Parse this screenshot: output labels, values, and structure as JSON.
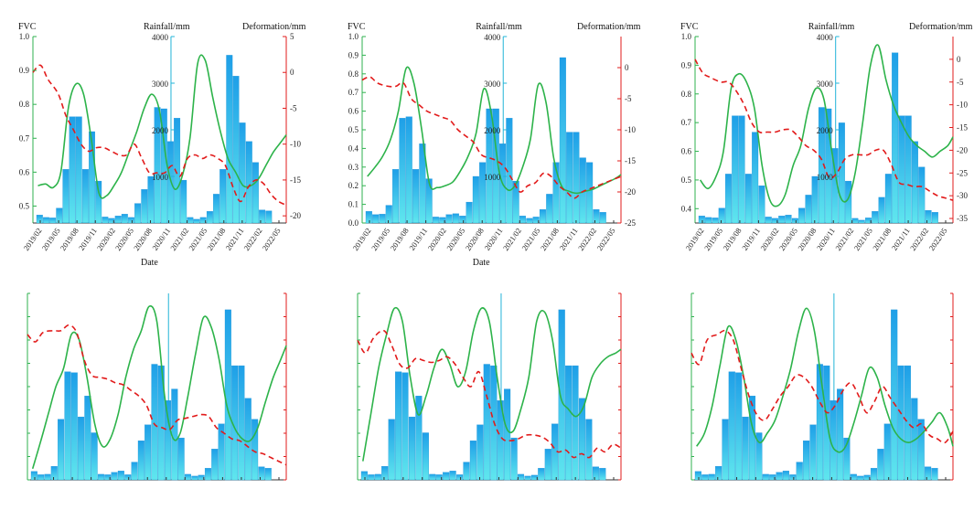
{
  "figure": {
    "layout": "2 rows x 3 columns of FVC / rainfall / deformation time series panels"
  },
  "colors": {
    "fvc_line": "#2db34a",
    "deformation_line": "#e21b1b",
    "rainfall_bar_top": "#1e9fe8",
    "rainfall_bar_bottom": "#5fe6ee",
    "rainfall_axis": "#22b4d8"
  },
  "chart_data": [
    {
      "type": "bar+line",
      "panel": "top-left",
      "labels": {
        "fvc": "FVC",
        "rainfall": "Rainfall/mm",
        "deformation": "Deformation/mm",
        "xlabel": "Date"
      },
      "fvc_ticks": [
        "0.5",
        "0.6",
        "0.7",
        "0.8",
        "0.9",
        "1.0"
      ],
      "rain_ticks": [
        "1000",
        "2000",
        "3000",
        "4000"
      ],
      "def_ticks": [
        "5",
        "0",
        "-5",
        "-10",
        "-15",
        "-20"
      ],
      "date_ticks": [
        "2019/02",
        "2019/05",
        "2019/08",
        "2019/11",
        "2020/02",
        "2020/05",
        "2020/08",
        "2020/11",
        "2021/02",
        "2021/05",
        "2021/08",
        "2021/11",
        "2022/02",
        "2022/05"
      ],
      "fvc_range": [
        0.45,
        1.0
      ],
      "rain_range": [
        0,
        4000
      ],
      "def_range": [
        -21,
        5
      ],
      "rainfall": [
        170,
        120,
        110,
        320,
        1150,
        2280,
        2280,
        1150,
        1960,
        900,
        130,
        100,
        150,
        190,
        120,
        420,
        720,
        1000,
        2480,
        2450,
        1750,
        2250,
        920,
        120,
        80,
        120,
        250,
        620,
        1150,
        3600,
        3150,
        2150,
        1750,
        1300,
        280,
        260
      ],
      "fvc_t": [
        0.02,
        0.05,
        0.08,
        0.11,
        0.14,
        0.17,
        0.2,
        0.23,
        0.26,
        0.29,
        0.32,
        0.35,
        0.38,
        0.41,
        0.44,
        0.47,
        0.5,
        0.53,
        0.56,
        0.59,
        0.62,
        0.65,
        0.68,
        0.71,
        0.74,
        0.77,
        0.8,
        0.83,
        0.86,
        0.89,
        0.92,
        0.95,
        0.98,
        1.0
      ],
      "fvc_values": [
        0.56,
        0.565,
        0.555,
        0.6,
        0.79,
        0.86,
        0.83,
        0.7,
        0.54,
        0.53,
        0.56,
        0.6,
        0.66,
        0.72,
        0.79,
        0.83,
        0.78,
        0.62,
        0.55,
        0.59,
        0.7,
        0.92,
        0.93,
        0.82,
        0.72,
        0.64,
        0.6,
        0.56,
        0.56,
        0.58,
        0.62,
        0.66,
        0.69,
        0.71
      ],
      "def_t": [
        0.0,
        0.03,
        0.06,
        0.1,
        0.13,
        0.16,
        0.19,
        0.22,
        0.25,
        0.28,
        0.31,
        0.34,
        0.37,
        0.4,
        0.43,
        0.46,
        0.49,
        0.52,
        0.55,
        0.58,
        0.61,
        0.64,
        0.67,
        0.7,
        0.73,
        0.76,
        0.79,
        0.82,
        0.85,
        0.88,
        0.91,
        0.94,
        0.97,
        1.0
      ],
      "def_values": [
        0,
        1,
        -1,
        -3,
        -6,
        -8,
        -10,
        -11,
        -10.5,
        -10.5,
        -11,
        -11.5,
        -11.5,
        -10,
        -12,
        -14,
        -14,
        -14,
        -13,
        -14.5,
        -12,
        -11.5,
        -12,
        -11.5,
        -12,
        -13,
        -16,
        -18,
        -16,
        -15,
        -15.5,
        -17,
        -18,
        -18.5
      ],
      "show_axis_text": true,
      "show_date": true
    },
    {
      "type": "bar+line",
      "panel": "top-middle",
      "labels": {
        "fvc": "FVC",
        "rainfall": "Rainfall/mm",
        "deformation": "Deformation/mm",
        "xlabel": "Date"
      },
      "fvc_ticks": [
        "0.0",
        "0.1",
        "0.2",
        "0.3",
        "0.4",
        "0.5",
        "0.6",
        "0.7",
        "0.8",
        "0.9",
        "1.0"
      ],
      "rain_ticks": [
        "1000",
        "2000",
        "3000",
        "4000"
      ],
      "def_ticks": [
        "0",
        "-5",
        "-10",
        "-15",
        "-20",
        "-25"
      ],
      "date_ticks": [
        "2019/02",
        "2019/05",
        "2019/08",
        "2019/11",
        "2020/02",
        "2020/05",
        "2020/08",
        "2020/11",
        "2021/02",
        "2021/05",
        "2021/08",
        "2021/11",
        "2022/02",
        "2022/05"
      ],
      "fvc_range": [
        0.0,
        1.0
      ],
      "rain_range": [
        0,
        4000
      ],
      "def_range": [
        -25,
        5
      ],
      "rainfall": [
        250,
        180,
        190,
        380,
        1150,
        2250,
        2280,
        1150,
        1700,
        950,
        130,
        120,
        180,
        200,
        150,
        450,
        1000,
        1300,
        2450,
        2450,
        1700,
        2250,
        900,
        150,
        100,
        130,
        290,
        620,
        1300,
        3550,
        1950,
        1950,
        1400,
        1300,
        290,
        230
      ],
      "fvc_t": [
        0.02,
        0.05,
        0.08,
        0.11,
        0.14,
        0.17,
        0.2,
        0.23,
        0.26,
        0.29,
        0.32,
        0.35,
        0.38,
        0.41,
        0.44,
        0.47,
        0.5,
        0.53,
        0.56,
        0.59,
        0.62,
        0.65,
        0.68,
        0.71,
        0.74,
        0.77,
        0.8,
        0.83,
        0.86,
        0.89,
        0.92,
        0.95,
        0.98,
        1.0
      ],
      "fvc_values": [
        0.25,
        0.3,
        0.36,
        0.45,
        0.6,
        0.83,
        0.75,
        0.5,
        0.21,
        0.19,
        0.2,
        0.22,
        0.28,
        0.36,
        0.48,
        0.72,
        0.58,
        0.27,
        0.18,
        0.2,
        0.3,
        0.45,
        0.74,
        0.65,
        0.35,
        0.2,
        0.17,
        0.16,
        0.17,
        0.18,
        0.2,
        0.22,
        0.24,
        0.26
      ],
      "def_t": [
        0.0,
        0.03,
        0.06,
        0.1,
        0.13,
        0.16,
        0.19,
        0.22,
        0.25,
        0.28,
        0.31,
        0.34,
        0.37,
        0.4,
        0.43,
        0.46,
        0.49,
        0.52,
        0.55,
        0.58,
        0.61,
        0.64,
        0.67,
        0.7,
        0.73,
        0.76,
        0.79,
        0.82,
        0.85,
        0.88,
        0.91,
        0.94,
        0.97,
        1.0
      ],
      "def_values": [
        -2,
        -1.5,
        -2.5,
        -3,
        -3,
        -2.5,
        -5,
        -6,
        -7,
        -7.5,
        -8,
        -8.5,
        -10,
        -11,
        -12,
        -14,
        -14.5,
        -15,
        -16,
        -18,
        -20,
        -19,
        -18.5,
        -17,
        -17.5,
        -19,
        -20,
        -21,
        -20,
        -19.5,
        -19,
        -18.5,
        -18,
        -17.5
      ],
      "show_axis_text": true,
      "show_date": true
    },
    {
      "type": "bar+line",
      "panel": "top-right",
      "labels": {
        "fvc": "FVC",
        "rainfall": "Rainfall/mm",
        "deformation": "Deformation/mm",
        "xlabel": ""
      },
      "fvc_ticks": [
        "0.4",
        "0.5",
        "0.6",
        "0.7",
        "0.8",
        "0.9",
        "1.0"
      ],
      "rain_ticks": [
        "1000",
        "2000",
        "3000",
        "4000"
      ],
      "def_ticks": [
        "0",
        "-5",
        "-10",
        "-15",
        "-20",
        "-25",
        "-30",
        "-35"
      ],
      "date_ticks": [
        "2019/02",
        "2019/05",
        "2019/08",
        "2019/11",
        "2020/02",
        "2020/05",
        "2020/08",
        "2020/11",
        "2021/02",
        "2021/05",
        "2021/08",
        "2021/11",
        "2022/02",
        "2022/05"
      ],
      "fvc_range": [
        0.35,
        1.0
      ],
      "rain_range": [
        0,
        4000
      ],
      "def_range": [
        -36,
        5
      ],
      "rainfall": [
        150,
        120,
        110,
        320,
        1050,
        2300,
        2300,
        1050,
        1950,
        800,
        130,
        100,
        150,
        170,
        100,
        320,
        600,
        1000,
        2480,
        2450,
        1600,
        2150,
        900,
        100,
        60,
        110,
        250,
        550,
        1050,
        3650,
        2300,
        2300,
        1750,
        1200,
        270,
        230
      ],
      "fvc_t": [
        0.02,
        0.05,
        0.08,
        0.11,
        0.14,
        0.17,
        0.2,
        0.23,
        0.26,
        0.29,
        0.32,
        0.35,
        0.38,
        0.41,
        0.44,
        0.47,
        0.5,
        0.53,
        0.56,
        0.59,
        0.62,
        0.65,
        0.68,
        0.71,
        0.74,
        0.77,
        0.8,
        0.83,
        0.86,
        0.89,
        0.92,
        0.95,
        0.98,
        1.0
      ],
      "fvc_values": [
        0.5,
        0.47,
        0.51,
        0.6,
        0.82,
        0.87,
        0.84,
        0.75,
        0.55,
        0.43,
        0.41,
        0.45,
        0.55,
        0.62,
        0.75,
        0.82,
        0.78,
        0.6,
        0.45,
        0.43,
        0.52,
        0.7,
        0.9,
        0.97,
        0.85,
        0.76,
        0.7,
        0.65,
        0.62,
        0.6,
        0.58,
        0.6,
        0.62,
        0.65
      ],
      "def_t": [
        0.0,
        0.03,
        0.06,
        0.1,
        0.13,
        0.16,
        0.19,
        0.22,
        0.25,
        0.28,
        0.31,
        0.34,
        0.37,
        0.4,
        0.43,
        0.46,
        0.49,
        0.52,
        0.55,
        0.58,
        0.61,
        0.64,
        0.67,
        0.7,
        0.73,
        0.76,
        0.79,
        0.82,
        0.85,
        0.88,
        0.91,
        0.94,
        0.97,
        1.0
      ],
      "def_values": [
        0,
        -3,
        -4,
        -5,
        -5,
        -7,
        -10,
        -14,
        -16,
        -16,
        -16,
        -15.5,
        -15.5,
        -17,
        -19,
        -20,
        -22,
        -26,
        -25,
        -22,
        -21,
        -21,
        -21,
        -20,
        -20,
        -23,
        -27,
        -27.5,
        -28,
        -28,
        -29,
        -30,
        -30.5,
        -31
      ],
      "show_axis_text": true,
      "show_date": true
    },
    {
      "type": "bar+line",
      "panel": "bottom-left",
      "rainfall": [
        180,
        110,
        120,
        290,
        1300,
        2320,
        2300,
        1350,
        1800,
        1010,
        120,
        110,
        160,
        190,
        110,
        380,
        840,
        1180,
        2480,
        2450,
        1700,
        1950,
        900,
        120,
        80,
        100,
        250,
        660,
        1200,
        3650,
        2450,
        2450,
        1750,
        1300,
        280,
        250
      ],
      "fvc_t": [
        0.02,
        0.05,
        0.08,
        0.11,
        0.14,
        0.17,
        0.2,
        0.23,
        0.26,
        0.29,
        0.32,
        0.35,
        0.38,
        0.41,
        0.44,
        0.47,
        0.5,
        0.53,
        0.56,
        0.59,
        0.62,
        0.65,
        0.68,
        0.71,
        0.74,
        0.77,
        0.8,
        0.83,
        0.86,
        0.89,
        0.92,
        0.95,
        0.98,
        1.0
      ],
      "fvc_values": [
        0.06,
        0.2,
        0.35,
        0.5,
        0.6,
        0.78,
        0.75,
        0.55,
        0.3,
        0.18,
        0.22,
        0.35,
        0.55,
        0.7,
        0.8,
        0.93,
        0.85,
        0.45,
        0.23,
        0.25,
        0.45,
        0.68,
        0.87,
        0.82,
        0.65,
        0.4,
        0.28,
        0.22,
        0.21,
        0.28,
        0.42,
        0.55,
        0.65,
        0.72
      ],
      "def_t": [
        0.0,
        0.03,
        0.06,
        0.1,
        0.13,
        0.16,
        0.19,
        0.22,
        0.25,
        0.28,
        0.31,
        0.34,
        0.37,
        0.4,
        0.43,
        0.46,
        0.49,
        0.52,
        0.55,
        0.58,
        0.61,
        0.64,
        0.67,
        0.7,
        0.73,
        0.76,
        0.79,
        0.82,
        0.85,
        0.88,
        0.91,
        0.94,
        0.97,
        1.0
      ],
      "def_values": [
        0.78,
        0.74,
        0.79,
        0.8,
        0.8,
        0.83,
        0.79,
        0.64,
        0.56,
        0.55,
        0.54,
        0.52,
        0.51,
        0.48,
        0.45,
        0.4,
        0.3,
        0.28,
        0.27,
        0.32,
        0.33,
        0.34,
        0.35,
        0.34,
        0.28,
        0.25,
        0.22,
        0.21,
        0.18,
        0.15,
        0.14,
        0.12,
        0.1,
        0.08
      ],
      "show_axis_text": false,
      "show_date": false
    },
    {
      "type": "bar+line",
      "panel": "bottom-middle",
      "rainfall": [
        180,
        110,
        120,
        290,
        1300,
        2320,
        2300,
        1350,
        1800,
        1010,
        120,
        110,
        160,
        190,
        110,
        380,
        840,
        1180,
        2480,
        2450,
        1700,
        1950,
        900,
        120,
        80,
        100,
        250,
        660,
        1200,
        3650,
        2450,
        2450,
        1750,
        1300,
        280,
        250
      ],
      "fvc_t": [
        0.02,
        0.05,
        0.08,
        0.11,
        0.14,
        0.17,
        0.2,
        0.23,
        0.26,
        0.29,
        0.32,
        0.35,
        0.38,
        0.41,
        0.44,
        0.47,
        0.5,
        0.53,
        0.56,
        0.59,
        0.62,
        0.65,
        0.68,
        0.71,
        0.74,
        0.77,
        0.8,
        0.83,
        0.86,
        0.89,
        0.92,
        0.95,
        0.98,
        1.0
      ],
      "fvc_values": [
        0.1,
        0.35,
        0.6,
        0.78,
        0.92,
        0.85,
        0.55,
        0.35,
        0.45,
        0.6,
        0.7,
        0.62,
        0.5,
        0.58,
        0.8,
        0.92,
        0.85,
        0.55,
        0.3,
        0.26,
        0.38,
        0.55,
        0.85,
        0.9,
        0.75,
        0.45,
        0.38,
        0.34,
        0.4,
        0.55,
        0.62,
        0.66,
        0.68,
        0.7
      ],
      "def_t": [
        0.0,
        0.03,
        0.06,
        0.1,
        0.13,
        0.16,
        0.19,
        0.22,
        0.25,
        0.28,
        0.31,
        0.34,
        0.37,
        0.4,
        0.43,
        0.46,
        0.49,
        0.52,
        0.55,
        0.58,
        0.61,
        0.64,
        0.67,
        0.7,
        0.73,
        0.76,
        0.79,
        0.82,
        0.85,
        0.88,
        0.91,
        0.94,
        0.97,
        1.0
      ],
      "def_values": [
        0.75,
        0.68,
        0.76,
        0.8,
        0.72,
        0.62,
        0.6,
        0.65,
        0.64,
        0.63,
        0.64,
        0.66,
        0.62,
        0.55,
        0.5,
        0.58,
        0.45,
        0.3,
        0.22,
        0.21,
        0.22,
        0.24,
        0.24,
        0.23,
        0.2,
        0.15,
        0.16,
        0.12,
        0.14,
        0.12,
        0.17,
        0.15,
        0.19,
        0.17
      ],
      "show_axis_text": false,
      "show_date": false
    },
    {
      "type": "bar+line",
      "panel": "bottom-right",
      "rainfall": [
        180,
        110,
        120,
        290,
        1300,
        2320,
        2300,
        1350,
        1800,
        1010,
        120,
        110,
        160,
        190,
        110,
        380,
        840,
        1180,
        2480,
        2450,
        1700,
        1950,
        900,
        120,
        80,
        100,
        250,
        660,
        1200,
        3650,
        2450,
        2450,
        1750,
        1300,
        280,
        250
      ],
      "fvc_t": [
        0.02,
        0.05,
        0.08,
        0.11,
        0.14,
        0.17,
        0.2,
        0.23,
        0.26,
        0.29,
        0.32,
        0.35,
        0.38,
        0.41,
        0.44,
        0.47,
        0.5,
        0.53,
        0.56,
        0.59,
        0.62,
        0.65,
        0.68,
        0.71,
        0.74,
        0.77,
        0.8,
        0.83,
        0.86,
        0.89,
        0.92,
        0.95,
        0.98,
        1.0
      ],
      "fvc_values": [
        0.18,
        0.25,
        0.4,
        0.62,
        0.82,
        0.75,
        0.55,
        0.3,
        0.2,
        0.25,
        0.32,
        0.45,
        0.6,
        0.8,
        0.92,
        0.8,
        0.5,
        0.22,
        0.15,
        0.18,
        0.3,
        0.45,
        0.6,
        0.55,
        0.4,
        0.28,
        0.22,
        0.2,
        0.22,
        0.26,
        0.31,
        0.36,
        0.28,
        0.18
      ],
      "def_t": [
        0.0,
        0.03,
        0.06,
        0.1,
        0.13,
        0.16,
        0.19,
        0.22,
        0.25,
        0.28,
        0.31,
        0.34,
        0.37,
        0.4,
        0.43,
        0.46,
        0.49,
        0.52,
        0.55,
        0.58,
        0.61,
        0.64,
        0.67,
        0.7,
        0.73,
        0.76,
        0.79,
        0.82,
        0.85,
        0.88,
        0.91,
        0.94,
        0.97,
        1.0
      ],
      "def_values": [
        0.68,
        0.62,
        0.75,
        0.78,
        0.8,
        0.75,
        0.6,
        0.45,
        0.35,
        0.32,
        0.38,
        0.45,
        0.5,
        0.56,
        0.55,
        0.5,
        0.42,
        0.36,
        0.4,
        0.48,
        0.52,
        0.45,
        0.36,
        0.42,
        0.5,
        0.44,
        0.38,
        0.32,
        0.28,
        0.3,
        0.24,
        0.22,
        0.2,
        0.26
      ],
      "show_axis_text": false,
      "show_date": false
    }
  ]
}
